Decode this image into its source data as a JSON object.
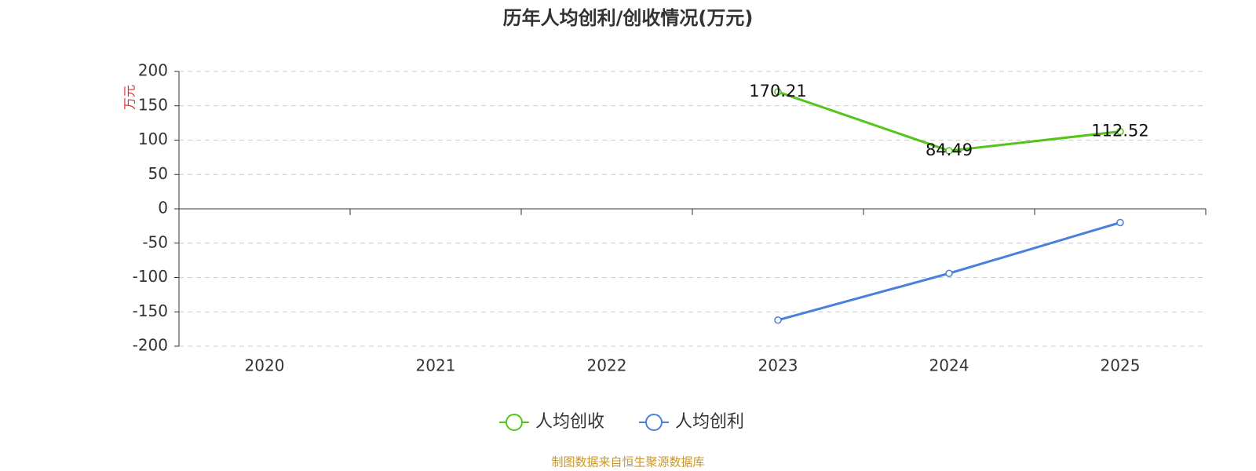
{
  "chart_data": {
    "type": "line",
    "title": "历年人均创利/创收情况(万元)",
    "y_label": "万元",
    "categories": [
      "2020",
      "2021",
      "2022",
      "2023",
      "2024",
      "2025"
    ],
    "series": [
      {
        "name": "人均创收",
        "color": "#52c41a",
        "values": [
          null,
          null,
          null,
          170.21,
          84.49,
          112.52
        ],
        "labels": true
      },
      {
        "name": "人均创利",
        "color": "#4a7fdb",
        "values": [
          null,
          null,
          null,
          -162,
          -94,
          -20
        ],
        "labels": false
      }
    ],
    "ylim": [
      -200,
      200
    ],
    "yticks": [
      -200,
      -150,
      -100,
      -50,
      0,
      50,
      100,
      150,
      200
    ],
    "grid": true,
    "source": "制图数据来自恒生聚源数据库"
  }
}
